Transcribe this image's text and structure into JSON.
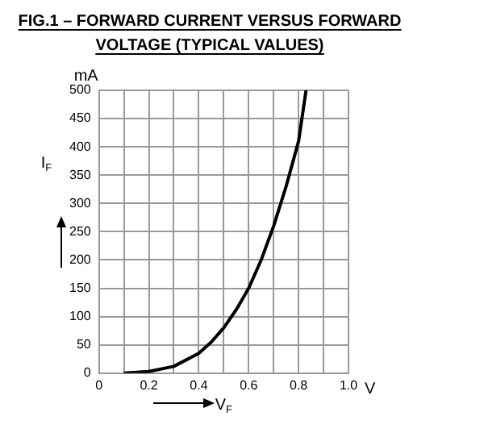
{
  "chart_data": {
    "type": "line",
    "title": "FIG.1 – FORWARD CURRENT VERSUS FORWARD\nVOLTAGE (TYPICAL VALUES)",
    "xlabel": "V$_{F}$",
    "ylabel": "I$_{F}$",
    "annotations": [
      "mA",
      "V"
    ],
    "x": [
      0.1,
      0.2,
      0.3,
      0.4,
      0.45,
      0.5,
      0.55,
      0.6,
      0.65,
      0.7,
      0.75,
      0.8,
      0.83
    ],
    "series": [
      {
        "color": "#000000",
        "values": [
          0,
          3,
          12,
          35,
          55,
          80,
          112,
          150,
          200,
          260,
          330,
          410,
          500
        ]
      }
    ],
    "xlim": [
      0,
      1
    ],
    "xticks": [
      {
        "value": 0,
        "label": "0"
      },
      {
        "value": 0.1,
        "label": null
      },
      0.2,
      {
        "value": 0.3,
        "label": null
      },
      0.4,
      {
        "value": 0.5,
        "label": null
      },
      0.6,
      {
        "value": 0.7,
        "label": null
      },
      0.8,
      {
        "value": 0.9,
        "label": null
      },
      {
        "value": 1,
        "label": "1.0"
      }
    ],
    "ylim": [
      0,
      500
    ],
    "yticks": [
      0,
      50,
      100,
      150,
      200,
      250,
      300,
      350,
      400,
      450,
      500
    ],
    "grid": true,
    "legend": false,
    "marker": "none",
    "line_style": "solid"
  }
}
